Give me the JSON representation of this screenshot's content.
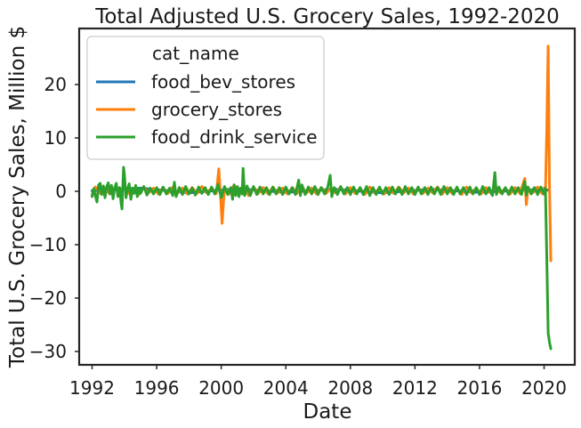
{
  "chart_data": {
    "type": "line",
    "title": "Total Adjusted U.S. Grocery Sales, 1992-2020",
    "xlabel": "Date",
    "ylabel": "Total U.S. Grocery Sales, Million $",
    "xlim": [
      1991.2,
      2021.9
    ],
    "ylim": [
      -32.5,
      30.5
    ],
    "x_ticks": [
      1992,
      1996,
      2000,
      2004,
      2008,
      2012,
      2016,
      2020
    ],
    "x_tick_labels": [
      "1992",
      "1996",
      "2000",
      "2004",
      "2008",
      "2012",
      "2016",
      "2020"
    ],
    "y_ticks": [
      -30,
      -20,
      -10,
      0,
      10,
      20
    ],
    "y_tick_labels": [
      "−30",
      "−20",
      "−10",
      "0",
      "10",
      "20"
    ],
    "grid": false,
    "legend": {
      "title": "cat_name",
      "placement": "top-left"
    },
    "series": [
      {
        "name": "food_bev_stores",
        "color": "#1f77b4",
        "points": [
          [
            1992.0,
            0.1
          ],
          [
            1995.0,
            0.6
          ],
          [
            1998.0,
            -0.3
          ],
          [
            2001.0,
            0.5
          ],
          [
            2004.0,
            -0.2
          ],
          [
            2007.0,
            0.4
          ],
          [
            2010.0,
            -0.3
          ],
          [
            2013.0,
            0.4
          ],
          [
            2016.0,
            -0.2
          ],
          [
            2019.0,
            0.3
          ],
          [
            2020.1,
            0.3
          ],
          [
            2020.25,
            0.2
          ]
        ]
      },
      {
        "name": "grocery_stores",
        "color": "#ff7f0e",
        "points": [
          [
            1992.0,
            -0.6
          ],
          [
            1992.2,
            0.8
          ],
          [
            1992.5,
            -0.4
          ],
          [
            1992.8,
            0.6
          ],
          [
            1993.1,
            -0.5
          ],
          [
            1993.4,
            0.7
          ],
          [
            1993.7,
            -0.2
          ],
          [
            1994.0,
            0.9
          ],
          [
            1994.3,
            -0.4
          ],
          [
            1994.6,
            0.5
          ],
          [
            1994.9,
            -0.6
          ],
          [
            1995.2,
            0.8
          ],
          [
            1995.5,
            -0.3
          ],
          [
            1995.8,
            0.6
          ],
          [
            1996.1,
            -0.5
          ],
          [
            1996.4,
            0.7
          ],
          [
            1996.7,
            -0.4
          ],
          [
            1997.0,
            0.8
          ],
          [
            1997.3,
            -0.3
          ],
          [
            1997.6,
            0.6
          ],
          [
            1997.9,
            -0.5
          ],
          [
            1998.2,
            0.7
          ],
          [
            1998.5,
            -0.4
          ],
          [
            1998.8,
            0.9
          ],
          [
            1999.1,
            -0.3
          ],
          [
            1999.4,
            0.6
          ],
          [
            1999.7,
            -0.4
          ],
          [
            1999.85,
            4.2
          ],
          [
            1999.95,
            -0.6
          ],
          [
            2000.05,
            -6.0
          ],
          [
            2000.2,
            0.8
          ],
          [
            2000.5,
            -0.5
          ],
          [
            2000.8,
            1.2
          ],
          [
            2001.1,
            -0.7
          ],
          [
            2001.4,
            0.9
          ],
          [
            2001.7,
            -0.8
          ],
          [
            2002.0,
            0.8
          ],
          [
            2002.3,
            -0.4
          ],
          [
            2002.6,
            0.7
          ],
          [
            2002.9,
            -0.5
          ],
          [
            2003.2,
            0.8
          ],
          [
            2003.5,
            -0.3
          ],
          [
            2003.8,
            0.6
          ],
          [
            2004.1,
            -0.5
          ],
          [
            2004.4,
            0.7
          ],
          [
            2004.7,
            -0.4
          ],
          [
            2005.0,
            0.8
          ],
          [
            2005.3,
            -0.3
          ],
          [
            2005.6,
            0.6
          ],
          [
            2005.9,
            -0.5
          ],
          [
            2006.2,
            0.7
          ],
          [
            2006.5,
            -0.4
          ],
          [
            2006.8,
            0.6
          ],
          [
            2007.1,
            -0.3
          ],
          [
            2007.4,
            0.8
          ],
          [
            2007.7,
            -0.5
          ],
          [
            2008.0,
            0.7
          ],
          [
            2008.3,
            -0.4
          ],
          [
            2008.6,
            0.6
          ],
          [
            2008.9,
            -0.6
          ],
          [
            2009.2,
            0.8
          ],
          [
            2009.5,
            -0.3
          ],
          [
            2009.8,
            0.6
          ],
          [
            2010.1,
            -0.5
          ],
          [
            2010.4,
            0.7
          ],
          [
            2010.7,
            -0.4
          ],
          [
            2011.0,
            0.8
          ],
          [
            2011.3,
            -0.3
          ],
          [
            2011.6,
            0.6
          ],
          [
            2011.9,
            -0.5
          ],
          [
            2012.2,
            0.7
          ],
          [
            2012.5,
            -0.4
          ],
          [
            2012.8,
            0.6
          ],
          [
            2013.1,
            -0.3
          ],
          [
            2013.4,
            0.8
          ],
          [
            2013.7,
            -0.5
          ],
          [
            2014.0,
            0.7
          ],
          [
            2014.3,
            -0.4
          ],
          [
            2014.6,
            0.6
          ],
          [
            2014.9,
            -0.6
          ],
          [
            2015.2,
            0.8
          ],
          [
            2015.5,
            -0.3
          ],
          [
            2015.8,
            0.6
          ],
          [
            2016.1,
            -0.5
          ],
          [
            2016.4,
            0.7
          ],
          [
            2016.7,
            -0.4
          ],
          [
            2017.0,
            0.8
          ],
          [
            2017.3,
            -0.3
          ],
          [
            2017.6,
            0.6
          ],
          [
            2017.9,
            -0.5
          ],
          [
            2018.2,
            0.7
          ],
          [
            2018.5,
            -0.4
          ],
          [
            2018.8,
            2.4
          ],
          [
            2018.9,
            -2.5
          ],
          [
            2019.0,
            0.6
          ],
          [
            2019.3,
            -0.3
          ],
          [
            2019.6,
            0.8
          ],
          [
            2019.9,
            -0.5
          ],
          [
            2020.0,
            0.6
          ],
          [
            2020.08,
            -0.5
          ],
          [
            2020.17,
            12.0
          ],
          [
            2020.25,
            27.2
          ],
          [
            2020.33,
            2.0
          ],
          [
            2020.42,
            -13.0
          ]
        ]
      },
      {
        "name": "food_drink_service",
        "color": "#2ca02c",
        "points": [
          [
            1992.0,
            -1.0
          ],
          [
            1992.1,
            0.5
          ],
          [
            1992.2,
            -0.8
          ],
          [
            1992.3,
            -2.0
          ],
          [
            1992.4,
            1.2
          ],
          [
            1992.5,
            1.5
          ],
          [
            1992.6,
            -0.6
          ],
          [
            1992.7,
            1.0
          ],
          [
            1992.8,
            -1.2
          ],
          [
            1992.9,
            0.8
          ],
          [
            1993.0,
            1.6
          ],
          [
            1993.1,
            -0.5
          ],
          [
            1993.2,
            1.1
          ],
          [
            1993.3,
            -1.4
          ],
          [
            1993.4,
            0.6
          ],
          [
            1993.5,
            1.5
          ],
          [
            1993.6,
            -1.0
          ],
          [
            1993.7,
            0.7
          ],
          [
            1993.8,
            -2.3
          ],
          [
            1993.85,
            -3.3
          ],
          [
            1993.9,
            0.8
          ],
          [
            1993.95,
            4.5
          ],
          [
            1994.0,
            3.2
          ],
          [
            1994.1,
            -1.2
          ],
          [
            1994.2,
            0.5
          ],
          [
            1994.3,
            1.4
          ],
          [
            1994.4,
            -1.5
          ],
          [
            1994.5,
            0.6
          ],
          [
            1994.6,
            -0.4
          ],
          [
            1994.7,
            1.1
          ],
          [
            1994.8,
            -1.0
          ],
          [
            1994.9,
            0.6
          ],
          [
            1995.0,
            -0.4
          ],
          [
            1995.2,
            0.9
          ],
          [
            1995.4,
            -0.7
          ],
          [
            1995.6,
            0.6
          ],
          [
            1995.8,
            -0.5
          ],
          [
            1996.0,
            0.7
          ],
          [
            1996.2,
            -0.6
          ],
          [
            1996.4,
            0.8
          ],
          [
            1996.6,
            -0.5
          ],
          [
            1996.8,
            0.6
          ],
          [
            1997.0,
            -0.8
          ],
          [
            1997.1,
            1.7
          ],
          [
            1997.2,
            -1.0
          ],
          [
            1997.4,
            0.7
          ],
          [
            1997.6,
            -0.6
          ],
          [
            1997.8,
            0.9
          ],
          [
            1998.0,
            -0.5
          ],
          [
            1998.2,
            0.6
          ],
          [
            1998.4,
            -0.7
          ],
          [
            1998.6,
            0.8
          ],
          [
            1998.8,
            -0.4
          ],
          [
            1999.0,
            0.7
          ],
          [
            1999.2,
            -0.6
          ],
          [
            1999.4,
            0.8
          ],
          [
            1999.6,
            -0.5
          ],
          [
            1999.8,
            1.3
          ],
          [
            2000.0,
            -1.2
          ],
          [
            2000.2,
            0.9
          ],
          [
            2000.4,
            -0.6
          ],
          [
            2000.6,
            0.7
          ],
          [
            2000.7,
            -1.5
          ],
          [
            2000.8,
            1.2
          ],
          [
            2000.9,
            -0.8
          ],
          [
            2001.0,
            0.9
          ],
          [
            2001.1,
            -1.0
          ],
          [
            2001.2,
            0.6
          ],
          [
            2001.3,
            -0.5
          ],
          [
            2001.35,
            4.3
          ],
          [
            2001.45,
            -0.8
          ],
          [
            2001.6,
            1.0
          ],
          [
            2001.8,
            -0.8
          ],
          [
            2002.0,
            0.9
          ],
          [
            2002.2,
            -0.6
          ],
          [
            2002.4,
            0.8
          ],
          [
            2002.6,
            -0.5
          ],
          [
            2002.8,
            0.7
          ],
          [
            2003.0,
            -0.6
          ],
          [
            2003.2,
            0.8
          ],
          [
            2003.4,
            -0.5
          ],
          [
            2003.6,
            0.7
          ],
          [
            2003.8,
            -0.6
          ],
          [
            2004.0,
            0.8
          ],
          [
            2004.2,
            -0.5
          ],
          [
            2004.4,
            0.7
          ],
          [
            2004.6,
            -0.6
          ],
          [
            2004.8,
            2.1
          ],
          [
            2004.9,
            -0.8
          ],
          [
            2005.0,
            1.2
          ],
          [
            2005.2,
            -0.6
          ],
          [
            2005.4,
            0.8
          ],
          [
            2005.6,
            -0.5
          ],
          [
            2005.8,
            0.9
          ],
          [
            2006.0,
            -0.6
          ],
          [
            2006.2,
            0.7
          ],
          [
            2006.4,
            -0.5
          ],
          [
            2006.6,
            0.8
          ],
          [
            2006.75,
            3.0
          ],
          [
            2006.85,
            -1.0
          ],
          [
            2007.0,
            0.7
          ],
          [
            2007.2,
            -0.6
          ],
          [
            2007.4,
            0.9
          ],
          [
            2007.6,
            -0.5
          ],
          [
            2007.8,
            0.7
          ],
          [
            2008.0,
            -0.6
          ],
          [
            2008.2,
            0.8
          ],
          [
            2008.4,
            -0.5
          ],
          [
            2008.6,
            0.7
          ],
          [
            2008.8,
            -0.6
          ],
          [
            2009.0,
            0.9
          ],
          [
            2009.2,
            -0.8
          ],
          [
            2009.4,
            0.7
          ],
          [
            2009.6,
            -0.6
          ],
          [
            2009.8,
            0.8
          ],
          [
            2010.0,
            -0.5
          ],
          [
            2010.2,
            0.7
          ],
          [
            2010.4,
            -0.6
          ],
          [
            2010.6,
            0.8
          ],
          [
            2010.8,
            -0.5
          ],
          [
            2011.0,
            0.7
          ],
          [
            2011.2,
            -0.6
          ],
          [
            2011.4,
            0.9
          ],
          [
            2011.6,
            -0.5
          ],
          [
            2011.8,
            0.7
          ],
          [
            2012.0,
            -0.6
          ],
          [
            2012.2,
            0.8
          ],
          [
            2012.4,
            -0.5
          ],
          [
            2012.6,
            0.7
          ],
          [
            2012.8,
            -0.6
          ],
          [
            2013.0,
            0.8
          ],
          [
            2013.2,
            -0.5
          ],
          [
            2013.4,
            0.7
          ],
          [
            2013.6,
            -0.6
          ],
          [
            2013.8,
            0.9
          ],
          [
            2014.0,
            -0.5
          ],
          [
            2014.2,
            0.7
          ],
          [
            2014.4,
            -0.6
          ],
          [
            2014.6,
            0.8
          ],
          [
            2014.8,
            -0.5
          ],
          [
            2015.0,
            0.7
          ],
          [
            2015.2,
            -0.6
          ],
          [
            2015.4,
            0.8
          ],
          [
            2015.6,
            -0.5
          ],
          [
            2015.8,
            0.7
          ],
          [
            2016.0,
            -0.6
          ],
          [
            2016.2,
            0.9
          ],
          [
            2016.4,
            -0.5
          ],
          [
            2016.6,
            0.7
          ],
          [
            2016.8,
            -0.8
          ],
          [
            2016.95,
            3.5
          ],
          [
            2017.05,
            -0.6
          ],
          [
            2017.2,
            0.8
          ],
          [
            2017.4,
            -0.5
          ],
          [
            2017.6,
            0.7
          ],
          [
            2017.8,
            -0.6
          ],
          [
            2018.0,
            0.8
          ],
          [
            2018.2,
            -0.5
          ],
          [
            2018.4,
            0.7
          ],
          [
            2018.6,
            -0.6
          ],
          [
            2018.8,
            1.8
          ],
          [
            2018.9,
            -0.7
          ],
          [
            2019.0,
            0.8
          ],
          [
            2019.2,
            -0.5
          ],
          [
            2019.4,
            0.7
          ],
          [
            2019.6,
            -0.6
          ],
          [
            2019.8,
            0.8
          ],
          [
            2020.0,
            -0.5
          ],
          [
            2020.08,
            0.6
          ],
          [
            2020.17,
            -13.0
          ],
          [
            2020.25,
            -26.5
          ],
          [
            2020.33,
            -28.2
          ],
          [
            2020.42,
            -29.5
          ]
        ]
      }
    ]
  }
}
